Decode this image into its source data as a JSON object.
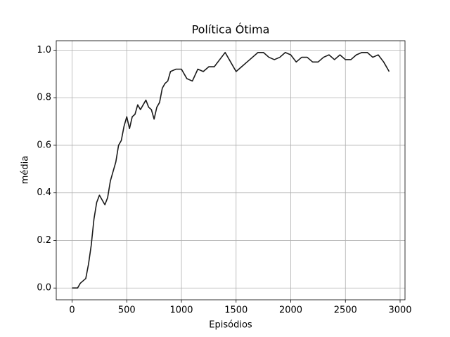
{
  "chart_data": {
    "type": "line",
    "title": "Política Ótima",
    "xlabel": "Episódios",
    "ylabel": "média",
    "x": [
      0,
      50,
      75,
      100,
      125,
      150,
      175,
      200,
      225,
      250,
      275,
      300,
      325,
      350,
      375,
      400,
      425,
      450,
      475,
      500,
      525,
      550,
      575,
      600,
      625,
      650,
      675,
      700,
      725,
      750,
      775,
      800,
      825,
      850,
      875,
      900,
      950,
      1000,
      1050,
      1100,
      1150,
      1200,
      1250,
      1300,
      1350,
      1400,
      1450,
      1500,
      1550,
      1600,
      1650,
      1700,
      1750,
      1800,
      1850,
      1900,
      1950,
      2000,
      2050,
      2100,
      2150,
      2200,
      2250,
      2300,
      2350,
      2400,
      2450,
      2500,
      2550,
      2600,
      2650,
      2700,
      2750,
      2800,
      2850,
      2900
    ],
    "series": [
      {
        "color": "#1a1a1a",
        "values": [
          0,
          0,
          0.02,
          0.03,
          0.04,
          0.1,
          0.18,
          0.29,
          0.36,
          0.39,
          0.37,
          0.35,
          0.38,
          0.45,
          0.49,
          0.53,
          0.6,
          0.62,
          0.68,
          0.72,
          0.67,
          0.72,
          0.73,
          0.77,
          0.75,
          0.77,
          0.79,
          0.76,
          0.75,
          0.71,
          0.76,
          0.78,
          0.84,
          0.86,
          0.87,
          0.91,
          0.92,
          0.92,
          0.88,
          0.87,
          0.92,
          0.91,
          0.93,
          0.93,
          0.96,
          0.99,
          0.95,
          0.91,
          0.93,
          0.95,
          0.97,
          0.99,
          0.99,
          0.97,
          0.96,
          0.97,
          0.99,
          0.98,
          0.95,
          0.97,
          0.97,
          0.95,
          0.95,
          0.97,
          0.98,
          0.96,
          0.98,
          0.96,
          0.96,
          0.98,
          0.99,
          0.99,
          0.97,
          0.98,
          0.95,
          0.91
        ]
      }
    ],
    "xlim": [
      -145,
      3045
    ],
    "ylim": [
      -0.0495,
      1.0395
    ],
    "xticks": [
      0,
      500,
      1000,
      1500,
      2000,
      2500,
      3000
    ],
    "yticks": [
      {
        "value": 0,
        "label": "0.0"
      },
      0.2,
      0.4,
      0.6,
      0.8,
      {
        "value": 1,
        "label": "1.0"
      }
    ],
    "grid": true
  }
}
